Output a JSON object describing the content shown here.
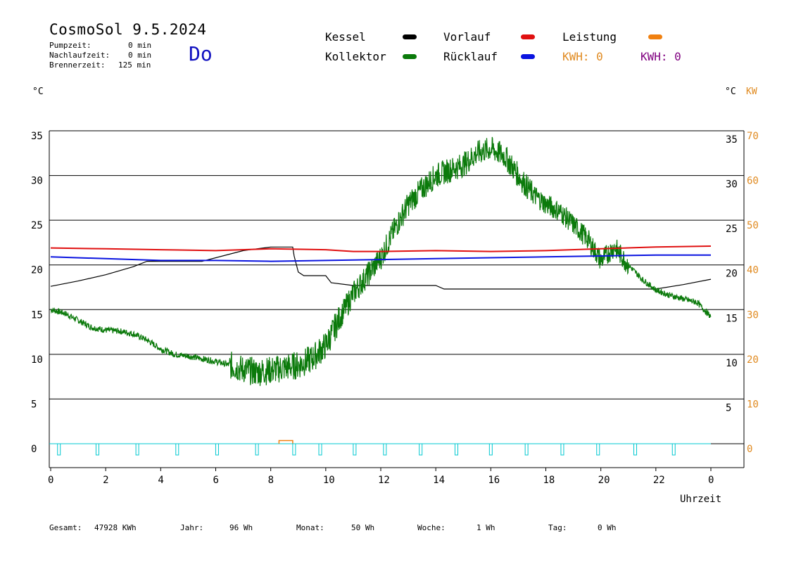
{
  "header": {
    "title": "CosmoSol 9.5.2024",
    "day": "Do",
    "stats": [
      {
        "label": "Pumpzeit:",
        "value": "0 min"
      },
      {
        "label": "Nachlaufzeit:",
        "value": "0 min"
      },
      {
        "label": "Brennerzeit:",
        "value": "125 min"
      }
    ]
  },
  "legend": {
    "kessel": "Kessel",
    "kollektor": "Kollektor",
    "vorlauf": "Vorlauf",
    "ruecklauf": "Rücklauf",
    "leistung": "Leistung",
    "kwh_orange": "KWH: 0",
    "kwh_purple": "KWH: 0"
  },
  "axes": {
    "left_unit": "°C",
    "right_unit_c": "°C",
    "right_unit_kw": "KW",
    "x_label": "Uhrzeit"
  },
  "colors": {
    "kessel": "#000000",
    "kollektor": "#0b7a0b",
    "vorlauf": "#e01010",
    "ruecklauf": "#0a14e0",
    "leistung": "#f08010",
    "kwh_purple": "#800080",
    "pump": "#00c8d0"
  },
  "footer": [
    {
      "label": "Gesamt:",
      "value": "47928 KWh"
    },
    {
      "label": "Jahr:",
      "value": "96 Wh"
    },
    {
      "label": "Monat:",
      "value": "50 Wh"
    },
    {
      "label": "Woche:",
      "value": "1 Wh"
    },
    {
      "label": "Tag:",
      "value": "0 Wh"
    }
  ],
  "chart_data": {
    "type": "line",
    "x_ticks": [
      "0",
      "2",
      "4",
      "6",
      "8",
      "10",
      "12",
      "14",
      "16",
      "18",
      "20",
      "22",
      "0"
    ],
    "y_left_ticks": [
      "0",
      "5",
      "10",
      "15",
      "20",
      "25",
      "30",
      "35"
    ],
    "y_right_c_ticks": [
      "5",
      "10",
      "15",
      "20",
      "25",
      "30",
      "35"
    ],
    "y_right_kw_ticks": [
      "0",
      "10",
      "20",
      "30",
      "40",
      "50",
      "60",
      "70"
    ],
    "xlim": [
      0,
      24
    ],
    "ylim": [
      0,
      35
    ],
    "y_right_kw_lim": [
      0,
      70
    ],
    "series": [
      {
        "name": "Kessel",
        "color_key": "kessel",
        "x": [
          0,
          1,
          2,
          3,
          3.5,
          5.5,
          7,
          8,
          8.8,
          8.85,
          9,
          9.2,
          10,
          10.2,
          11,
          12,
          14,
          14.3,
          16,
          18,
          19,
          20,
          21,
          22,
          23,
          24
        ],
        "y": [
          17.6,
          18.2,
          18.9,
          19.8,
          20.4,
          20.4,
          21.6,
          22.0,
          22.0,
          21.0,
          19.2,
          18.8,
          18.8,
          18.0,
          17.7,
          17.7,
          17.7,
          17.3,
          17.3,
          17.3,
          17.3,
          17.3,
          17.3,
          17.3,
          17.8,
          18.4
        ]
      },
      {
        "name": "Kollektor",
        "color_key": "kollektor",
        "x": [
          0,
          0.5,
          1,
          1.5,
          2,
          2.5,
          3,
          3.5,
          4,
          4.5,
          5,
          5.5,
          6,
          6.5,
          7,
          7.5,
          8,
          8.5,
          9,
          9.5,
          10,
          10.5,
          11,
          11.5,
          12,
          12.5,
          13,
          13.5,
          14,
          14.5,
          15,
          15.5,
          16,
          16.5,
          17,
          17.5,
          18,
          18.5,
          19,
          19.5,
          20,
          20.5,
          21,
          21.5,
          22,
          22.5,
          23,
          23.5,
          24
        ],
        "y": [
          15.0,
          14.6,
          13.8,
          13.0,
          12.7,
          12.6,
          12.3,
          11.6,
          10.6,
          10.0,
          9.8,
          9.5,
          9.2,
          8.8,
          8.3,
          8.0,
          8.2,
          8.5,
          8.8,
          9.5,
          11.0,
          14.0,
          16.8,
          18.8,
          20.8,
          24.0,
          26.8,
          28.5,
          30.0,
          30.6,
          31.2,
          32.5,
          33.0,
          32.2,
          30.0,
          28.0,
          26.8,
          26.0,
          24.5,
          23.0,
          20.5,
          22.0,
          20.0,
          18.4,
          17.2,
          16.6,
          16.2,
          15.8,
          14.2
        ]
      },
      {
        "name": "Vorlauf",
        "color_key": "vorlauf",
        "x": [
          0,
          2,
          4,
          6,
          8,
          10,
          11,
          12,
          14,
          16,
          18,
          20,
          22,
          24
        ],
        "y": [
          21.9,
          21.8,
          21.7,
          21.6,
          21.8,
          21.7,
          21.5,
          21.5,
          21.6,
          21.5,
          21.6,
          21.8,
          22.0,
          22.1
        ]
      },
      {
        "name": "Rücklauf",
        "color_key": "ruecklauf",
        "x": [
          0,
          2,
          4,
          6,
          8,
          10,
          12,
          14,
          16,
          18,
          20,
          22,
          24
        ],
        "y": [
          20.9,
          20.7,
          20.5,
          20.5,
          20.4,
          20.5,
          20.6,
          20.7,
          20.8,
          20.9,
          21.0,
          21.1,
          21.1
        ]
      }
    ],
    "leistung": {
      "name": "Leistung",
      "color_key": "leistung",
      "x": [
        8.3,
        8.3,
        8.8,
        8.8
      ],
      "y_kw": [
        0,
        0.7,
        0.7,
        0
      ]
    },
    "pump_marks_x": [
      0.3,
      1.7,
      3.15,
      4.6,
      6.05,
      7.5,
      8.85,
      9.8,
      11.05,
      12.15,
      13.45,
      14.75,
      16.0,
      17.3,
      18.6,
      19.9,
      21.25,
      22.65
    ]
  }
}
